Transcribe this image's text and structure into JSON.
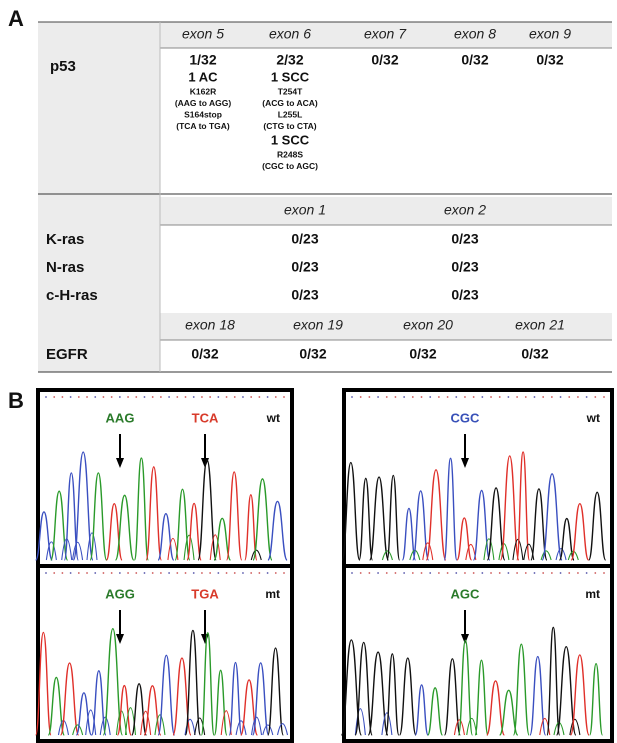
{
  "panel_labels": [
    "A",
    "B"
  ],
  "table": {
    "p53": {
      "label": "p53",
      "exons": [
        "exon 5",
        "exon 6",
        "exon 7",
        "exon 8",
        "exon 9"
      ],
      "counts": [
        "1/32",
        "2/32",
        "0/32",
        "0/32",
        "0/32"
      ],
      "details": [
        [
          {
            "header": "1 AC",
            "lines": [
              "K162R",
              "(AAG to AGG)",
              "S164stop",
              "(TCA to TGA)"
            ]
          }
        ],
        [
          {
            "header": "1 SCC",
            "lines": [
              "T254T",
              "(ACG to ACA)",
              "L255L",
              "(CTG to CTA)"
            ]
          },
          {
            "header": "1 SCC",
            "lines": [
              "R248S",
              "(CGC to AGC)"
            ]
          }
        ]
      ]
    },
    "ras": {
      "exons": [
        "exon 1",
        "exon 2"
      ],
      "rows": [
        {
          "label": "K-ras",
          "values": [
            "0/23",
            "0/23"
          ]
        },
        {
          "label": "N-ras",
          "values": [
            "0/23",
            "0/23"
          ]
        },
        {
          "label": "c-H-ras",
          "values": [
            "0/23",
            "0/23"
          ]
        }
      ]
    },
    "egfr": {
      "label": "EGFR",
      "exons": [
        "exon 18",
        "exon 19",
        "exon 20",
        "exon 21"
      ],
      "values": [
        "0/32",
        "0/32",
        "0/32",
        "0/32"
      ]
    }
  },
  "chromatograms": [
    {
      "codons": [
        "AAG",
        "TCA"
      ],
      "state": "wt"
    },
    {
      "codons": [
        "CGC"
      ],
      "state": "wt"
    },
    {
      "codons": [
        "AGG",
        "TGA"
      ],
      "state": "mt"
    },
    {
      "codons": [
        "AGC"
      ],
      "state": "mt"
    }
  ]
}
